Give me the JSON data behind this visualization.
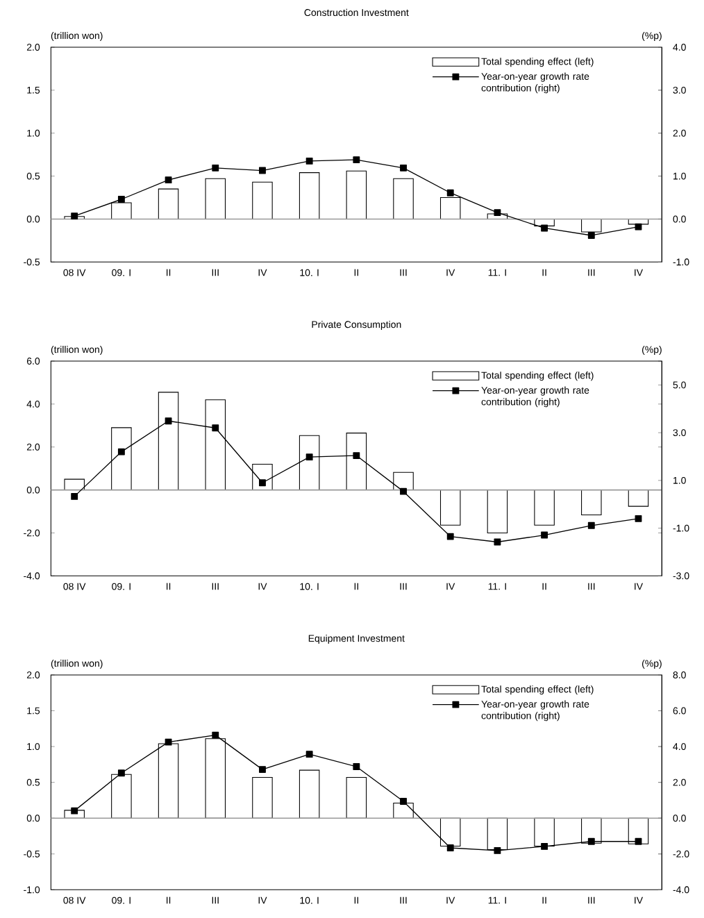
{
  "chart_data": [
    {
      "type": "bar",
      "title": "Construction Investment",
      "ylabel": "(trillion won)",
      "y2label": "(%p)",
      "categories": [
        "08 IV",
        "09. I",
        "II",
        "III",
        "IV",
        "10. I",
        "II",
        "III",
        "IV",
        "11. I",
        "II",
        "III",
        "IV"
      ],
      "series": [
        {
          "name": "Total spending effect (left)",
          "color": "#ffffff",
          "values": [
            0.03,
            0.19,
            0.35,
            0.47,
            0.43,
            0.54,
            0.56,
            0.47,
            0.25,
            0.06,
            -0.08,
            -0.15,
            -0.06
          ]
        },
        {
          "name": "Year-on-year growth rate contribution (right)",
          "type": "line",
          "axis": "y2",
          "color": "#000000",
          "values": [
            0.07,
            0.46,
            0.91,
            1.19,
            1.13,
            1.35,
            1.38,
            1.19,
            0.61,
            0.15,
            -0.21,
            -0.38,
            -0.18
          ]
        }
      ],
      "ylim": [
        -0.5,
        2.0
      ],
      "yticks": [
        {
          "value": -0.5,
          "label": "-0.5"
        },
        {
          "value": 0,
          "label": "0.0"
        },
        {
          "value": 0.5,
          "label": "0.5"
        },
        {
          "value": 1,
          "label": "1.0"
        },
        {
          "value": 1.5,
          "label": "1.5"
        },
        {
          "value": 2,
          "label": "2.0"
        }
      ],
      "y2lim": [
        -1.0,
        4.0
      ],
      "y2ticks": [
        {
          "value": -1,
          "label": "-1.0"
        },
        {
          "value": 0,
          "label": "0.0"
        },
        {
          "value": 1,
          "label": "1.0"
        },
        {
          "value": 2,
          "label": "2.0"
        },
        {
          "value": 3,
          "label": "3.0"
        },
        {
          "value": 4,
          "label": "4.0"
        }
      ],
      "legend": "top right",
      "marker": "square",
      "line_style": "solid",
      "ref_lines": [
        {
          "axis": "y",
          "value": 0,
          "color": "#999999"
        }
      ]
    },
    {
      "type": "bar",
      "title": "Private Consumption",
      "ylabel": "(trillion won)",
      "y2label": "(%p)",
      "categories": [
        "08 IV",
        "09. I",
        "II",
        "III",
        "IV",
        "10. I",
        "II",
        "III",
        "IV",
        "11. I",
        "II",
        "III",
        "IV"
      ],
      "series": [
        {
          "name": "Total spending effect (left)",
          "color": "#ffffff",
          "values": [
            0.5,
            2.9,
            4.55,
            4.2,
            1.2,
            2.53,
            2.65,
            0.82,
            -1.64,
            -2.0,
            -1.64,
            -1.16,
            -0.76
          ]
        },
        {
          "name": "Year-on-year growth rate contribution (right)",
          "type": "line",
          "axis": "y2",
          "color": "#000000",
          "values": [
            0.33,
            2.2,
            3.49,
            3.2,
            0.9,
            1.98,
            2.04,
            0.54,
            -1.35,
            -1.58,
            -1.29,
            -0.89,
            -0.6
          ]
        }
      ],
      "ylim": [
        -4.0,
        6.0
      ],
      "yticks": [
        {
          "value": -4,
          "label": "-4.0"
        },
        {
          "value": -2,
          "label": "-2.0"
        },
        {
          "value": 0,
          "label": "0.0"
        },
        {
          "value": 2,
          "label": "2.0"
        },
        {
          "value": 4,
          "label": "4.0"
        },
        {
          "value": 6,
          "label": "6.0"
        }
      ],
      "y2lim": [
        -3.0,
        6.0
      ],
      "y2ticks": [
        {
          "value": -3,
          "label": "-3.0"
        },
        {
          "value": -1,
          "label": "-1.0"
        },
        {
          "value": 1,
          "label": "1.0"
        },
        {
          "value": 3,
          "label": "3.0"
        },
        {
          "value": 5,
          "label": "5.0"
        }
      ],
      "legend": "top right",
      "marker": "square",
      "line_style": "solid",
      "ref_lines": [
        {
          "axis": "y",
          "value": 0,
          "color": "#999999"
        }
      ]
    },
    {
      "type": "bar",
      "title": "Equipment Investment",
      "ylabel": "(trillion won)",
      "y2label": "(%p)",
      "categories": [
        "08 IV",
        "09. I",
        "II",
        "III",
        "IV",
        "10. I",
        "II",
        "III",
        "IV",
        "11. I",
        "II",
        "III",
        "IV"
      ],
      "series": [
        {
          "name": "Total spending effect (left)",
          "color": "#ffffff",
          "values": [
            0.11,
            0.61,
            1.04,
            1.11,
            0.57,
            0.67,
            0.57,
            0.21,
            -0.39,
            -0.44,
            -0.39,
            -0.35,
            -0.36
          ]
        },
        {
          "name": "Year-on-year growth rate contribution (right)",
          "type": "line",
          "axis": "y2",
          "color": "#000000",
          "values": [
            0.41,
            2.52,
            4.25,
            4.64,
            2.72,
            3.57,
            2.88,
            0.94,
            -1.66,
            -1.81,
            -1.58,
            -1.3,
            -1.3
          ]
        }
      ],
      "ylim": [
        -1.0,
        2.0
      ],
      "yticks": [
        {
          "value": -1,
          "label": "-1.0"
        },
        {
          "value": -0.5,
          "label": "-0.5"
        },
        {
          "value": 0,
          "label": "0.0"
        },
        {
          "value": 0.5,
          "label": "0.5"
        },
        {
          "value": 1,
          "label": "1.0"
        },
        {
          "value": 1.5,
          "label": "1.5"
        },
        {
          "value": 2,
          "label": "2.0"
        }
      ],
      "y2lim": [
        -4.0,
        8.0
      ],
      "y2ticks": [
        {
          "value": -4,
          "label": "-4.0"
        },
        {
          "value": -2,
          "label": "-2.0"
        },
        {
          "value": 0,
          "label": "0.0"
        },
        {
          "value": 2,
          "label": "2.0"
        },
        {
          "value": 4,
          "label": "4.0"
        },
        {
          "value": 6,
          "label": "6.0"
        },
        {
          "value": 8,
          "label": "8.0"
        }
      ],
      "legend": "top right",
      "marker": "square",
      "line_style": "solid",
      "ref_lines": [
        {
          "axis": "y",
          "value": 0,
          "color": "#999999"
        }
      ]
    }
  ]
}
